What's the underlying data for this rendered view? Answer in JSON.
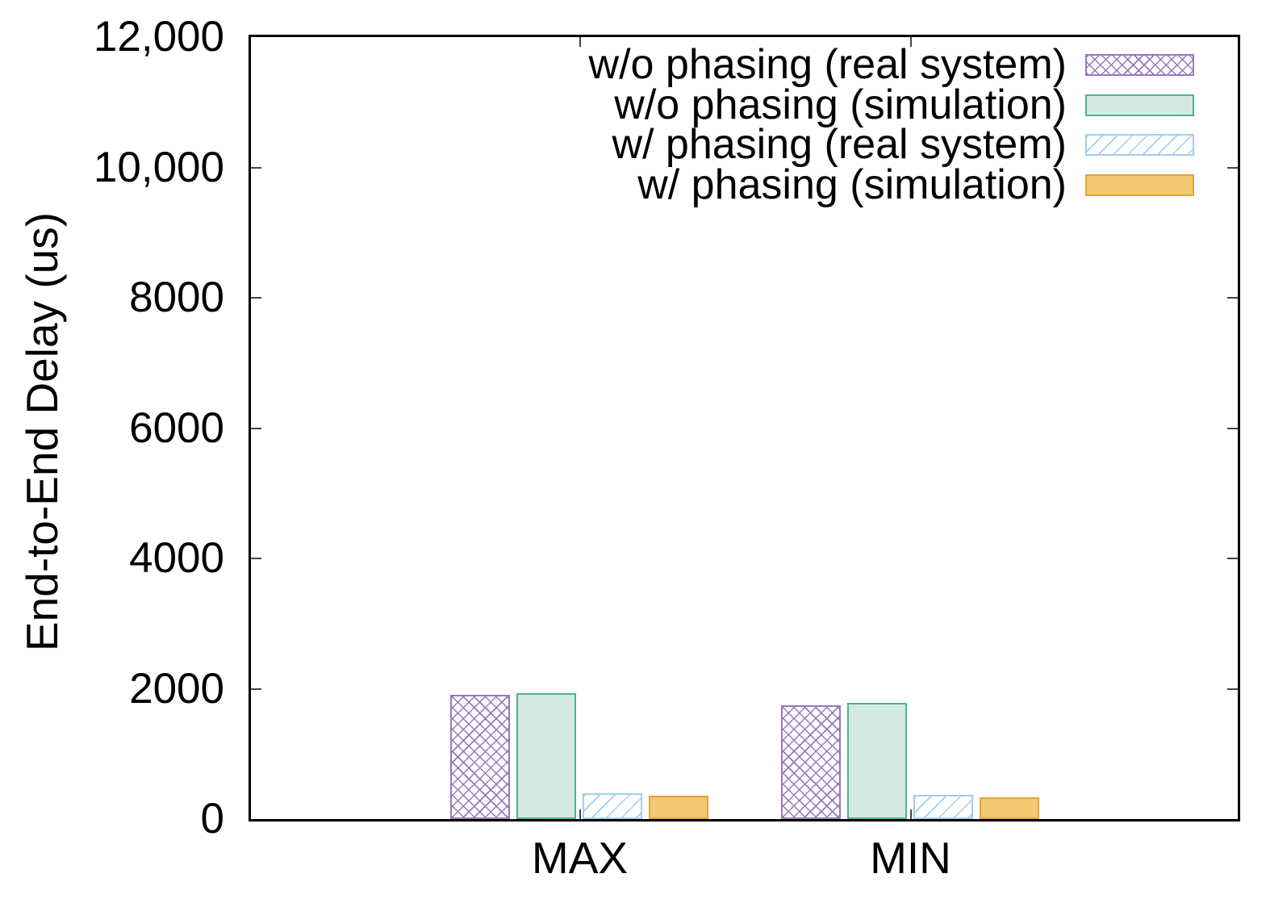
{
  "chart_data": {
    "type": "bar",
    "title": "",
    "categories": [
      "MAX",
      "MIN"
    ],
    "series": [
      {
        "name": "w/o phasing (real system)",
        "values": [
          1910,
          1750
        ],
        "pattern": "crosshatch",
        "stroke": "#9a77bd",
        "fill": "#ffffff"
      },
      {
        "name": "w/o phasing (simulation)",
        "values": [
          1930,
          1780
        ],
        "pattern": "solid",
        "stroke": "#4bb494",
        "fill": "#d4e9df"
      },
      {
        "name": "w/ phasing (real system)",
        "values": [
          400,
          375
        ],
        "pattern": "diagonal",
        "stroke": "#a0cfec",
        "fill": "#ffffff"
      },
      {
        "name": "w/ phasing (simulation)",
        "values": [
          360,
          335
        ],
        "pattern": "solid",
        "stroke": "#e6a33c",
        "fill": "#f1c874"
      }
    ],
    "ylabel": "End-to-End Delay (us)",
    "xlabel": "",
    "ylim": [
      0,
      12000
    ],
    "yticks": {
      "values": [
        0,
        2000,
        4000,
        6000,
        8000,
        10000,
        12000
      ],
      "labels": [
        "0",
        "2000",
        "4000",
        "6000",
        "8000",
        "10,000",
        "12,000"
      ]
    },
    "legend_position": "top-right-inside",
    "grid": false,
    "axis_color": "#000000"
  }
}
